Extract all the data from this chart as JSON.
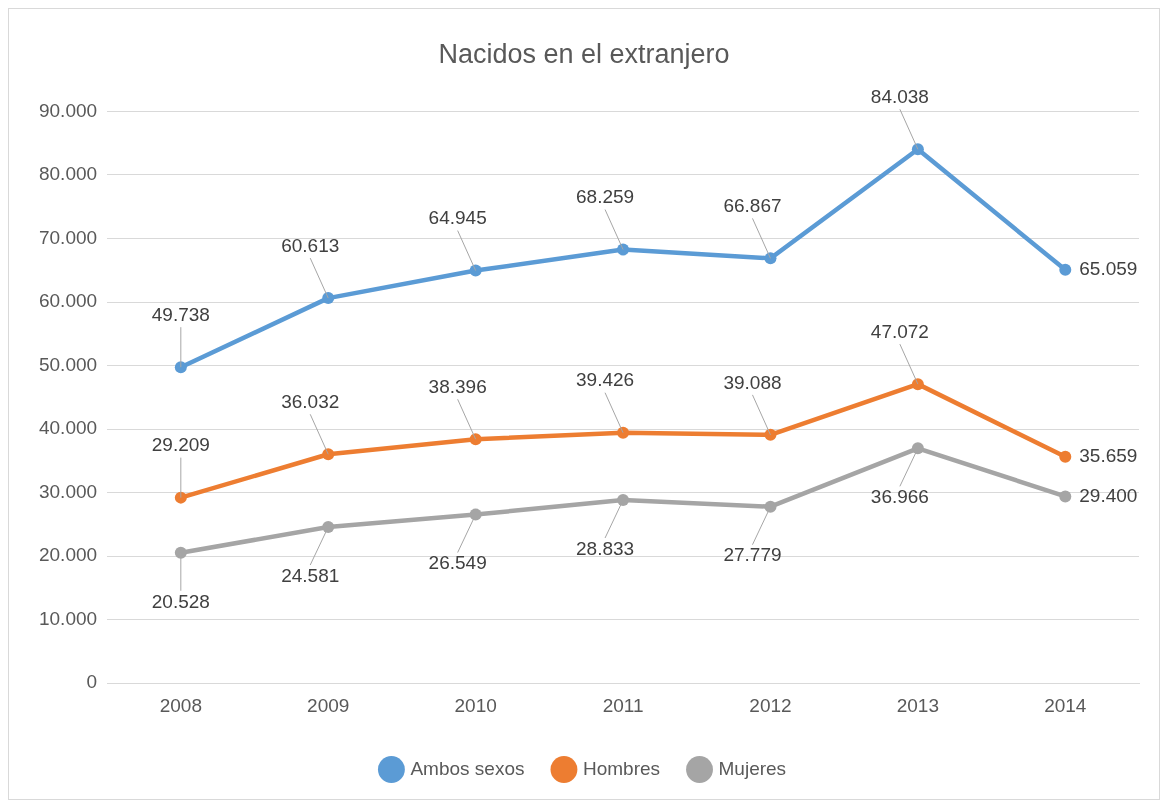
{
  "chart_data": {
    "type": "line",
    "title": "Nacidos en el extranjero",
    "categories": [
      "2008",
      "2009",
      "2010",
      "2011",
      "2012",
      "2013",
      "2014"
    ],
    "series": [
      {
        "name": "Ambos sexos",
        "color": "#5b9bd5",
        "values": [
          49738,
          60613,
          64945,
          68259,
          66867,
          84038,
          65059
        ],
        "value_labels": [
          "49.738",
          "60.613",
          "64.945",
          "68.259",
          "66.867",
          "84.038",
          "65.059"
        ]
      },
      {
        "name": "Hombres",
        "color": "#ed7d31",
        "values": [
          29209,
          36032,
          38396,
          39426,
          39088,
          47072,
          35659
        ],
        "value_labels": [
          "29.209",
          "36.032",
          "38.396",
          "39.426",
          "39.088",
          "47.072",
          "35.659"
        ]
      },
      {
        "name": "Mujeres",
        "color": "#a5a5a5",
        "values": [
          20528,
          24581,
          26549,
          28833,
          27779,
          36966,
          29400
        ],
        "value_labels": [
          "20.528",
          "24.581",
          "26.549",
          "28.833",
          "27.779",
          "36.966",
          "29.400"
        ]
      }
    ],
    "ylim": [
      0,
      90000
    ],
    "yticks": [
      {
        "value": 0,
        "label": "0"
      },
      {
        "value": 10000,
        "label": "10.000"
      },
      {
        "value": 20000,
        "label": "20.000"
      },
      {
        "value": 30000,
        "label": "30.000"
      },
      {
        "value": 40000,
        "label": "40.000"
      },
      {
        "value": 50000,
        "label": "50.000"
      },
      {
        "value": 60000,
        "label": "60.000"
      },
      {
        "value": 70000,
        "label": "70.000"
      },
      {
        "value": 80000,
        "label": "80.000"
      },
      {
        "value": 90000,
        "label": "90.000"
      }
    ],
    "grid": "y",
    "legend": "bottom",
    "marker": "circle",
    "line_style": "solid"
  }
}
